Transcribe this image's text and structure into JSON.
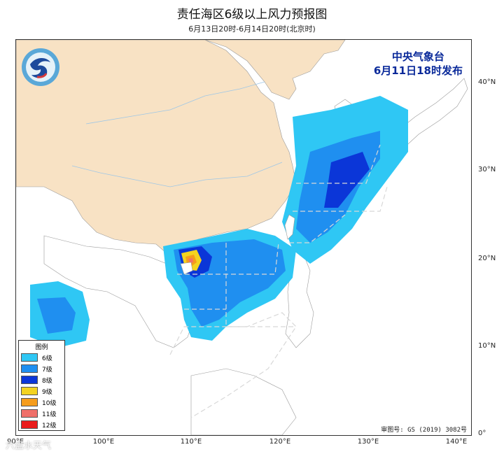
{
  "title": "责任海区6级以上风力预报图",
  "subtitle": "6月13日20时-6月14日20时(北京时)",
  "issuer": {
    "line1": "中央气象台",
    "line2": "6月11日18时发布"
  },
  "legend": {
    "title": "图例",
    "items": [
      {
        "label": "6级",
        "color": "#2fc7f4"
      },
      {
        "label": "7级",
        "color": "#1f8ff0"
      },
      {
        "label": "8级",
        "color": "#0b36d8"
      },
      {
        "label": "9级",
        "color": "#f3d320"
      },
      {
        "label": "10级",
        "color": "#f59c1c"
      },
      {
        "label": "11级",
        "color": "#f0706a"
      },
      {
        "label": "12级",
        "color": "#ea1c1c"
      }
    ]
  },
  "approval": "审图号: GS (2019) 3082号",
  "watermark": "六盘水天气",
  "axes": {
    "x_ticks": [
      "90°E",
      "100°E",
      "110°E",
      "120°E",
      "130°E",
      "140°E"
    ],
    "y_ticks": [
      "40°N",
      "30°N",
      "20°N",
      "10°N",
      "0°"
    ]
  },
  "colors": {
    "land_china": "#f8e2c4",
    "sea": "#ffffff",
    "boundary": "#9a9a9a",
    "river": "#9fc7e6"
  }
}
